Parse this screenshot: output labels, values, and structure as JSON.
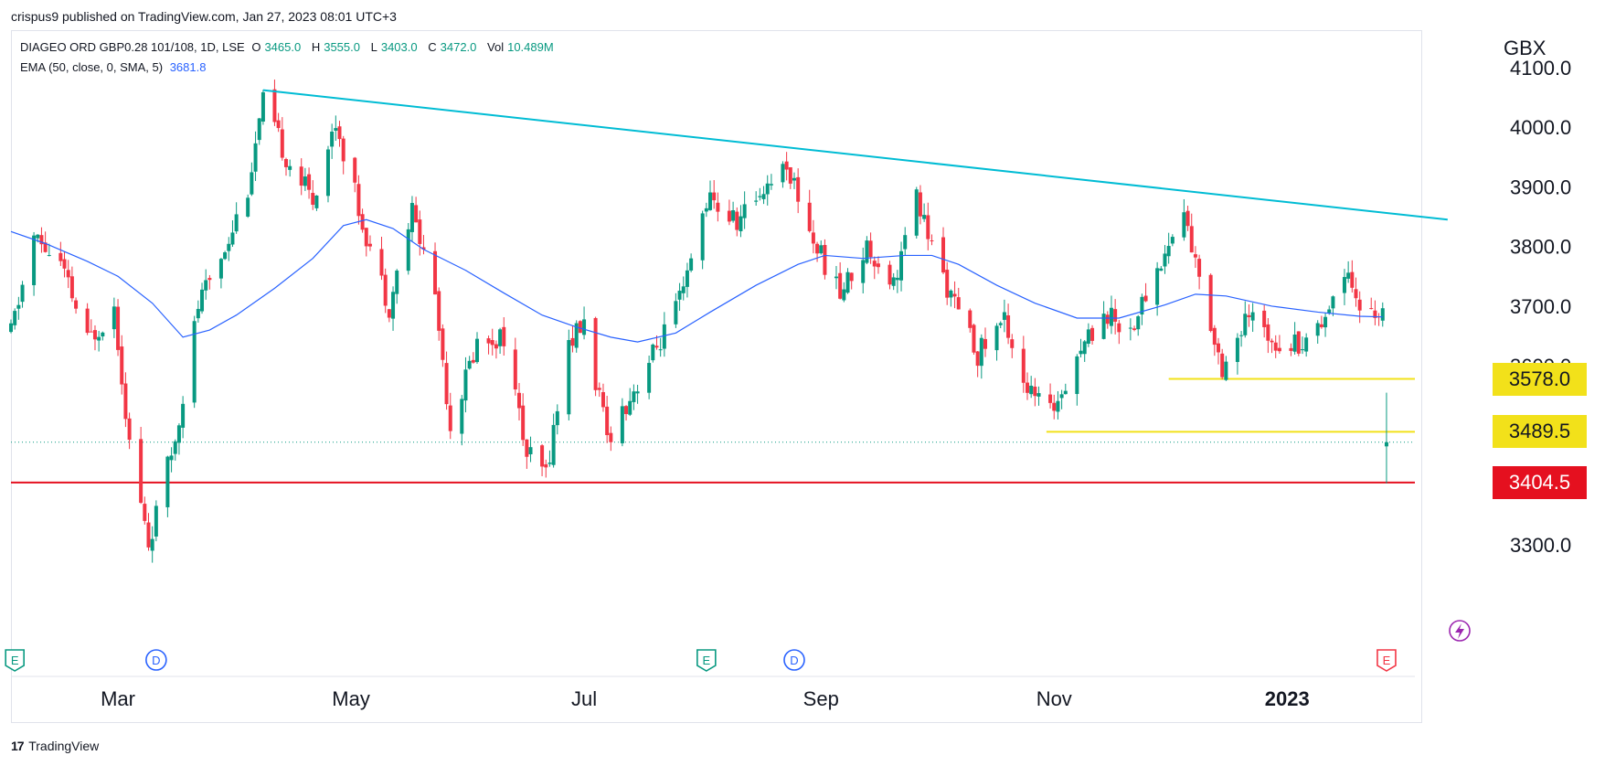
{
  "header": {
    "publisher_line": "crispus9 published on TradingView.com, Jan 27, 2023 08:01 UTC+3"
  },
  "legend": {
    "symbol": "DIAGEO ORD GBP0.28 101/108, 1D, LSE",
    "open_label": "O",
    "open_value": "3465.0",
    "high_label": "H",
    "high_value": "3555.0",
    "low_label": "L",
    "low_value": "3403.0",
    "close_label": "C",
    "close_value": "3472.0",
    "vol_label": "Vol",
    "vol_value": "10.489M",
    "ema_label": "EMA (50, close, 0, SMA, 5)",
    "ema_value": "3681.8"
  },
  "footer": {
    "brand": "TradingView",
    "brand_logo": "17"
  },
  "colors": {
    "up": "#089981",
    "down": "#f23645",
    "ema": "#2962ff",
    "trendline": "#00bcd4",
    "support": "#f2e11a",
    "resistance": "#e5101f"
  },
  "chart_data": {
    "type": "candlestick",
    "currency": "GBX",
    "y_ticks": [
      "4100.0",
      "4000.0",
      "3900.0",
      "3800.0",
      "3700.0",
      "3600.0",
      "3300.0"
    ],
    "ylim": [
      3225,
      4115
    ],
    "x_labels": [
      "Mar",
      "May",
      "Jul",
      "Sep",
      "Nov",
      "2023"
    ],
    "x_start": "2022-02-01",
    "x_end": "2023-02-24",
    "price_tags": [
      {
        "label": "3578.0",
        "value": 3578,
        "style": "support"
      },
      {
        "label": "3489.5",
        "value": 3489.5,
        "style": "support"
      },
      {
        "label": "3404.5",
        "value": 3404.5,
        "style": "resistance"
      }
    ],
    "horizontal_lines": [
      {
        "value": 3578,
        "from": "2022-12-01",
        "to": "2023-02-24",
        "color": "#f2e11a"
      },
      {
        "value": 3489.5,
        "from": "2022-10-30",
        "to": "2023-02-24",
        "color": "#f2e11a"
      },
      {
        "value": 3404.5,
        "from": "2022-02-01",
        "to": "2023-02-24",
        "color": "#e5101f"
      },
      {
        "value": 3472,
        "from": "2022-02-01",
        "to": "2023-02-24",
        "color": "#089981",
        "dotted": true
      }
    ],
    "trendline": {
      "from": [
        "2022-04-08",
        4062
      ],
      "to": [
        "2023-02-12",
        3845
      ]
    },
    "event_markers": [
      {
        "date": "2022-02-02",
        "label": "E",
        "kind": "earnings"
      },
      {
        "date": "2022-03-11",
        "label": "D",
        "kind": "dividend"
      },
      {
        "date": "2022-08-02",
        "label": "E",
        "kind": "earnings"
      },
      {
        "date": "2022-08-25",
        "label": "D",
        "kind": "dividend"
      },
      {
        "date": "2023-01-27",
        "label": "E",
        "kind": "earnings-upcoming"
      }
    ],
    "ema_series": [
      [
        "2022-02-01",
        3825
      ],
      [
        "2022-02-10",
        3805
      ],
      [
        "2022-02-21",
        3775
      ],
      [
        "2022-03-01",
        3750
      ],
      [
        "2022-03-10",
        3705
      ],
      [
        "2022-03-18",
        3648
      ],
      [
        "2022-03-25",
        3660
      ],
      [
        "2022-04-01",
        3685
      ],
      [
        "2022-04-11",
        3730
      ],
      [
        "2022-04-21",
        3780
      ],
      [
        "2022-04-29",
        3835
      ],
      [
        "2022-05-05",
        3845
      ],
      [
        "2022-05-12",
        3830
      ],
      [
        "2022-05-20",
        3795
      ],
      [
        "2022-05-31",
        3760
      ],
      [
        "2022-06-10",
        3722
      ],
      [
        "2022-06-20",
        3685
      ],
      [
        "2022-06-29",
        3665
      ],
      [
        "2022-07-08",
        3648
      ],
      [
        "2022-07-15",
        3640
      ],
      [
        "2022-07-25",
        3655
      ],
      [
        "2022-08-03",
        3690
      ],
      [
        "2022-08-15",
        3735
      ],
      [
        "2022-08-26",
        3770
      ],
      [
        "2022-09-02",
        3785
      ],
      [
        "2022-09-12",
        3780
      ],
      [
        "2022-09-23",
        3785
      ],
      [
        "2022-09-30",
        3785
      ],
      [
        "2022-10-07",
        3770
      ],
      [
        "2022-10-17",
        3735
      ],
      [
        "2022-10-27",
        3705
      ],
      [
        "2022-11-07",
        3680
      ],
      [
        "2022-11-18",
        3680
      ],
      [
        "2022-11-30",
        3702
      ],
      [
        "2022-12-08",
        3720
      ],
      [
        "2022-12-16",
        3717
      ],
      [
        "2022-12-28",
        3700
      ],
      [
        "2023-01-09",
        3690
      ],
      [
        "2023-01-20",
        3683
      ],
      [
        "2023-01-26",
        3682
      ]
    ],
    "price_path": [
      [
        "2022-02-01",
        3655
      ],
      [
        "2022-02-07",
        3815
      ],
      [
        "2022-02-14",
        3770
      ],
      [
        "2022-02-21",
        3640
      ],
      [
        "2022-02-28",
        3700
      ],
      [
        "2022-03-04",
        3470
      ],
      [
        "2022-03-09",
        3300
      ],
      [
        "2022-03-16",
        3480
      ],
      [
        "2022-03-22",
        3700
      ],
      [
        "2022-03-29",
        3800
      ],
      [
        "2022-04-04",
        3900
      ],
      [
        "2022-04-08",
        4040
      ],
      [
        "2022-04-14",
        3950
      ],
      [
        "2022-04-21",
        3880
      ],
      [
        "2022-04-27",
        4010
      ],
      [
        "2022-05-04",
        3840
      ],
      [
        "2022-05-11",
        3700
      ],
      [
        "2022-05-17",
        3860
      ],
      [
        "2022-05-23",
        3720
      ],
      [
        "2022-05-27",
        3500
      ],
      [
        "2022-06-03",
        3640
      ],
      [
        "2022-06-10",
        3650
      ],
      [
        "2022-06-16",
        3450
      ],
      [
        "2022-06-21",
        3420
      ],
      [
        "2022-06-27",
        3640
      ],
      [
        "2022-07-01",
        3670
      ],
      [
        "2022-07-07",
        3480
      ],
      [
        "2022-07-14",
        3560
      ],
      [
        "2022-07-20",
        3630
      ],
      [
        "2022-07-27",
        3720
      ],
      [
        "2022-08-02",
        3880
      ],
      [
        "2022-08-10",
        3840
      ],
      [
        "2022-08-17",
        3900
      ],
      [
        "2022-08-23",
        3940
      ],
      [
        "2022-08-30",
        3810
      ],
      [
        "2022-09-06",
        3720
      ],
      [
        "2022-09-13",
        3800
      ],
      [
        "2022-09-20",
        3740
      ],
      [
        "2022-09-26",
        3880
      ],
      [
        "2022-09-30",
        3800
      ],
      [
        "2022-10-06",
        3700
      ],
      [
        "2022-10-12",
        3620
      ],
      [
        "2022-10-19",
        3680
      ],
      [
        "2022-10-25",
        3560
      ],
      [
        "2022-10-31",
        3520
      ],
      [
        "2022-11-07",
        3620
      ],
      [
        "2022-11-14",
        3690
      ],
      [
        "2022-11-21",
        3660
      ],
      [
        "2022-11-28",
        3760
      ],
      [
        "2022-12-05",
        3860
      ],
      [
        "2022-12-09",
        3740
      ],
      [
        "2022-12-15",
        3600
      ],
      [
        "2022-12-22",
        3680
      ],
      [
        "2022-12-30",
        3640
      ],
      [
        "2023-01-06",
        3640
      ],
      [
        "2023-01-12",
        3700
      ],
      [
        "2023-01-17",
        3770
      ],
      [
        "2023-01-20",
        3690
      ],
      [
        "2023-01-25",
        3690
      ]
    ],
    "last_candle": {
      "date": "2023-01-27",
      "open": 3465.0,
      "high": 3555.0,
      "low": 3403.0,
      "close": 3472.0
    }
  }
}
